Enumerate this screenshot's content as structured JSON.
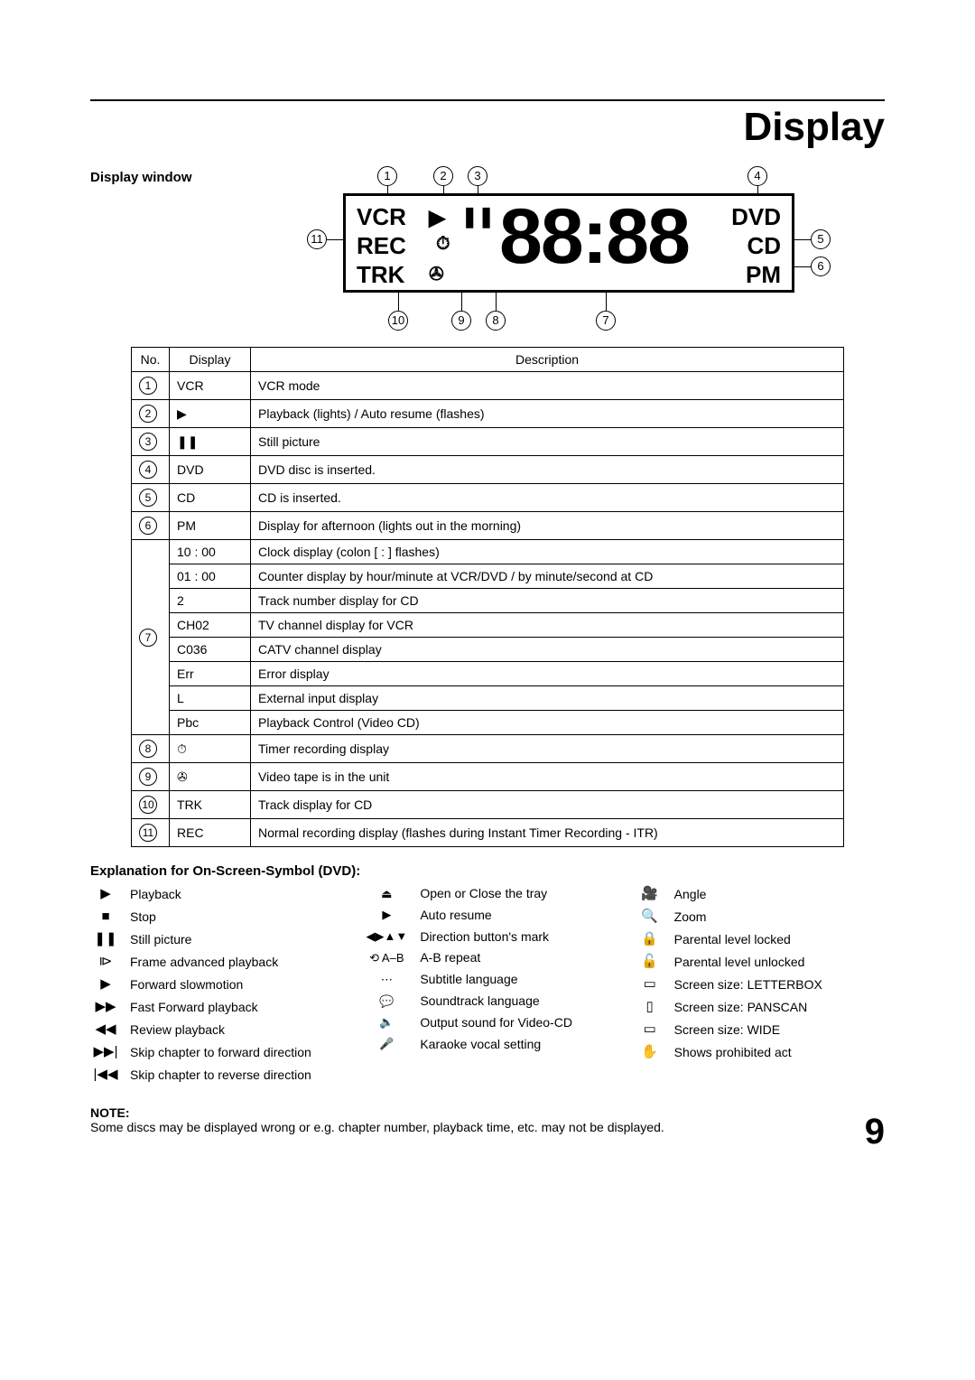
{
  "page": {
    "title": "Display",
    "number": "9",
    "display_window_label": "Display window"
  },
  "diagram": {
    "labels": {
      "vcr": "VCR",
      "rec": "REC",
      "trk": "TRK",
      "dvd": "DVD",
      "cd": "CD",
      "pm": "PM"
    },
    "digits": "88:88",
    "callouts": [
      "1",
      "2",
      "3",
      "4",
      "5",
      "6",
      "7",
      "8",
      "9",
      "10",
      "11"
    ]
  },
  "table": {
    "headers": {
      "no": "No.",
      "display": "Display",
      "description": "Description"
    },
    "rows": [
      {
        "no": "1",
        "display": "VCR",
        "description": "VCR mode"
      },
      {
        "no": "2",
        "display": "▶",
        "description": "Playback (lights) / Auto resume (flashes)"
      },
      {
        "no": "3",
        "display": "❚❚",
        "description": "Still picture"
      },
      {
        "no": "4",
        "display": "DVD",
        "description": "DVD disc is inserted."
      },
      {
        "no": "5",
        "display": "CD",
        "description": "CD is inserted."
      },
      {
        "no": "6",
        "display": "PM",
        "description": "Display for afternoon (lights out in the morning)"
      }
    ],
    "group7": {
      "no": "7",
      "rows": [
        {
          "display": "10 : 00",
          "description": "Clock display (colon [ : ] flashes)"
        },
        {
          "display": "01 : 00",
          "description": "Counter display by hour/minute at VCR/DVD / by minute/second at CD"
        },
        {
          "display": "2",
          "description": "Track number display for CD"
        },
        {
          "display": "CH02",
          "description": "TV channel display for VCR"
        },
        {
          "display": "C036",
          "description": "CATV channel display"
        },
        {
          "display": "Err",
          "description": "Error display"
        },
        {
          "display": "L",
          "description": "External input display"
        },
        {
          "display": "Pbc",
          "description": "Playback Control (Video CD)"
        }
      ]
    },
    "rows_after": [
      {
        "no": "8",
        "display": "⏱",
        "description": "Timer recording display"
      },
      {
        "no": "9",
        "display": "✇",
        "description": "Video tape is in the unit"
      },
      {
        "no": "10",
        "display": "TRK",
        "description": "Track display for CD"
      },
      {
        "no": "11",
        "display": "REC",
        "description": "Normal recording display (flashes during Instant Timer Recording - ITR)"
      }
    ]
  },
  "legend": {
    "heading": "Explanation for On-Screen-Symbol (DVD):",
    "col1": [
      {
        "sym": "▶",
        "label": "Playback"
      },
      {
        "sym": "■",
        "label": "Stop"
      },
      {
        "sym": "❚❚",
        "label": "Still picture"
      },
      {
        "sym": "⧐",
        "label": "Frame advanced playback"
      },
      {
        "sym": "▶",
        "label": "Forward slowmotion"
      },
      {
        "sym": "▶▶",
        "label": "Fast Forward playback"
      },
      {
        "sym": "◀◀",
        "label": "Review playback"
      },
      {
        "sym": "▶▶|",
        "label": "Skip chapter to forward direction"
      },
      {
        "sym": "|◀◀",
        "label": "Skip chapter to reverse direction"
      }
    ],
    "col2": [
      {
        "sym": "⏏",
        "label": "Open or Close the tray"
      },
      {
        "sym": "▶",
        "label": "Auto resume"
      },
      {
        "sym": "◀▶▲▼",
        "label": "Direction button's mark"
      },
      {
        "sym": "⟲ A–B",
        "label": "A-B repeat"
      },
      {
        "sym": "⋯",
        "label": "Subtitle language"
      },
      {
        "sym": "💬",
        "label": "Soundtrack language"
      },
      {
        "sym": "🔈",
        "label": "Output sound for Video-CD"
      },
      {
        "sym": "🎤",
        "label": "Karaoke vocal setting"
      }
    ],
    "col3": [
      {
        "sym": "🎥",
        "label": "Angle"
      },
      {
        "sym": "🔍",
        "label": "Zoom"
      },
      {
        "sym": "🔒",
        "label": "Parental level locked"
      },
      {
        "sym": "🔓",
        "label": "Parental level unlocked"
      },
      {
        "sym": "▭",
        "label": "Screen size: LETTERBOX"
      },
      {
        "sym": "▯",
        "label": "Screen size: PANSCAN"
      },
      {
        "sym": "▭",
        "label": "Screen size: WIDE"
      },
      {
        "sym": "✋",
        "label": "Shows prohibited act"
      }
    ]
  },
  "note": {
    "label": "NOTE:",
    "text": "Some discs may be displayed wrong or e.g. chapter number, playback time, etc. may not be displayed."
  }
}
